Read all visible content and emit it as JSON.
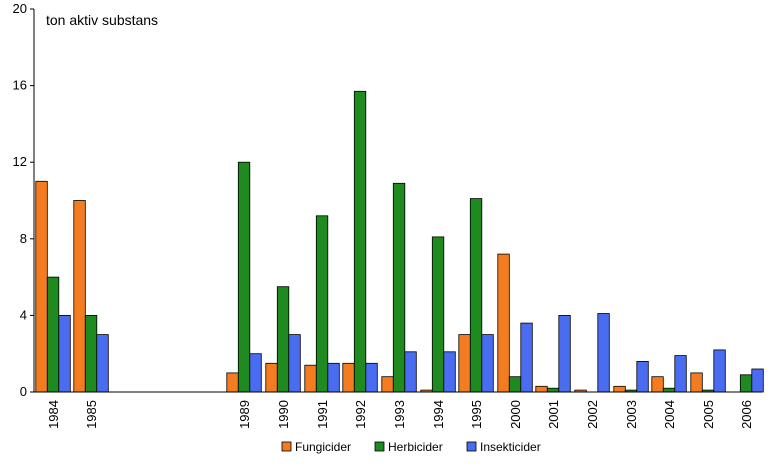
{
  "chart_data": {
    "type": "bar",
    "title": "ton aktiv substans",
    "ylim": [
      0,
      20
    ],
    "yticks": [
      0,
      4,
      8,
      12,
      16,
      20
    ],
    "grid": false,
    "legend_position": "bottom",
    "categories": [
      "1984",
      "1985",
      "1989",
      "1990",
      "1991",
      "1992",
      "1993",
      "1994",
      "1995",
      "2000",
      "2001",
      "2002",
      "2003",
      "2004",
      "2005",
      "2006"
    ],
    "series": [
      {
        "name": "Fungicider",
        "color": "#f47c20",
        "values": [
          11,
          10,
          1,
          1.5,
          1.4,
          1.5,
          0.8,
          0.1,
          3,
          7.2,
          0.3,
          0.1,
          0.3,
          0.8,
          1,
          0
        ]
      },
      {
        "name": "Herbicider",
        "color": "#1f8a1f",
        "values": [
          6,
          4,
          12,
          5.5,
          9.2,
          15.7,
          10.9,
          8.1,
          10.1,
          0.8,
          0.2,
          0,
          0.1,
          0.2,
          0.1,
          0.9
        ]
      },
      {
        "name": "Insekticider",
        "color": "#4a6cf0",
        "values": [
          4,
          3,
          2,
          3,
          1.5,
          1.5,
          2.1,
          2.1,
          3,
          3.6,
          4,
          4.1,
          1.6,
          1.9,
          2.2,
          1.2
        ]
      }
    ]
  }
}
